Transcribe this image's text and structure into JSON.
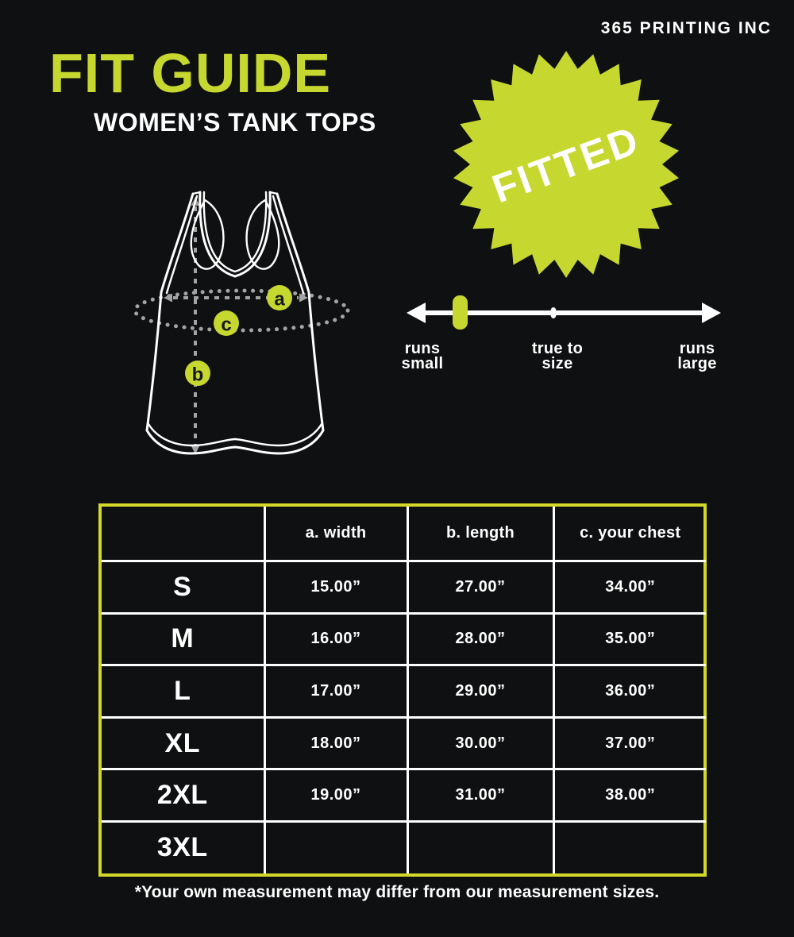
{
  "brand": "365 PRINTING INC",
  "title": "FIT GUIDE",
  "subtitle": "WOMEN’S TANK TOPS",
  "badge": {
    "label": "FITTED"
  },
  "fit_scale": {
    "slider_value": "runs small",
    "labels": [
      {
        "line1": "runs",
        "line2": "small"
      },
      {
        "line1": "true to",
        "line2": "size"
      },
      {
        "line1": "runs",
        "line2": "large"
      }
    ]
  },
  "diagram": {
    "markers": [
      {
        "label": "a"
      },
      {
        "label": "b"
      },
      {
        "label": "c"
      }
    ]
  },
  "table": {
    "headers": [
      "",
      "a. width",
      "b. length",
      "c. your chest"
    ],
    "rows": [
      {
        "size": "S",
        "width": "15.00”",
        "length": "27.00”",
        "chest": "34.00”"
      },
      {
        "size": "M",
        "width": "16.00”",
        "length": "28.00”",
        "chest": "35.00”"
      },
      {
        "size": "L",
        "width": "17.00”",
        "length": "29.00”",
        "chest": "36.00”"
      },
      {
        "size": "XL",
        "width": "18.00”",
        "length": "30.00”",
        "chest": "37.00”"
      },
      {
        "size": "2XL",
        "width": "19.00”",
        "length": "31.00”",
        "chest": "38.00”"
      },
      {
        "size": "3XL",
        "width": "",
        "length": "",
        "chest": ""
      }
    ]
  },
  "footnote": "*Your own measurement may differ from our measurement sizes.",
  "colors": {
    "background": "#0e1011",
    "accent": "#c6d72f",
    "table_border": "#d3d929",
    "dash": "#a3a3a3",
    "text": "#ffffff"
  }
}
